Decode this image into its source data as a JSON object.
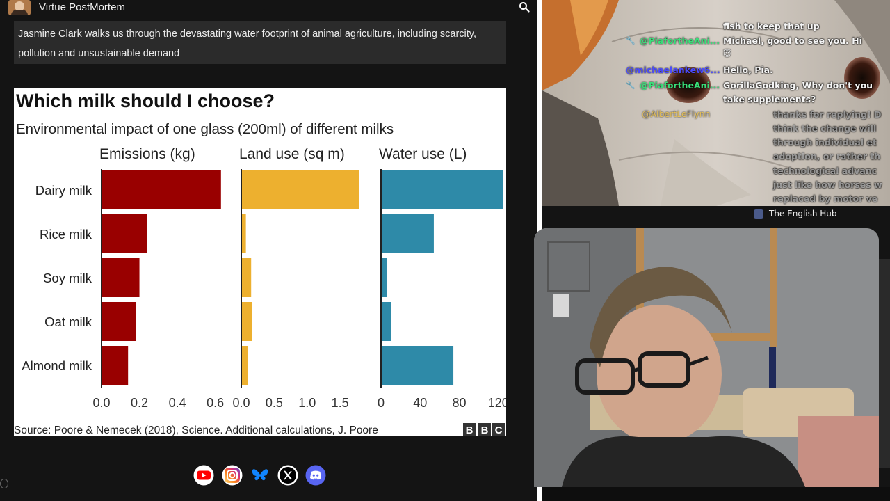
{
  "header": {
    "channel_name": "Virtue PostMortem"
  },
  "description": "Jasmine Clark walks us through the devastating water footprint of animal agriculture, including scarcity, pollution and unsustainable demand",
  "chart_data": {
    "type": "bar",
    "title": "Which milk should I choose?",
    "subtitle": "Environmental impact of one glass (200ml) of different milks",
    "categories": [
      "Dairy milk",
      "Rice milk",
      "Soy milk",
      "Oat milk",
      "Almond milk"
    ],
    "panels": [
      {
        "name": "Emissions (kg)",
        "color": "#990000",
        "values": [
          0.63,
          0.24,
          0.2,
          0.18,
          0.14
        ],
        "xlim": [
          0,
          0.66
        ],
        "ticks": [
          "0.0",
          "0.2",
          "0.4",
          "0.6"
        ],
        "tick_values": [
          0,
          0.2,
          0.4,
          0.6
        ]
      },
      {
        "name": "Land use (sq m)",
        "color": "#EDB02F",
        "values": [
          1.79,
          0.07,
          0.15,
          0.16,
          0.1
        ],
        "xlim": [
          0,
          1.9
        ],
        "ticks": [
          "0.0",
          "0.5",
          "1.0",
          "1.5"
        ],
        "tick_values": [
          0,
          0.5,
          1.0,
          1.5
        ]
      },
      {
        "name": "Water use (L)",
        "color": "#2E8AA8",
        "values": [
          125,
          54,
          6,
          10,
          74
        ],
        "xlim": [
          0,
          128
        ],
        "ticks": [
          "0",
          "40",
          "80",
          "120"
        ],
        "tick_values": [
          0,
          40,
          80,
          120
        ]
      }
    ],
    "source": "Source: Poore & Nemecek (2018), Science. Additional calculations, J. Poore",
    "logo": [
      "B",
      "B",
      "C"
    ]
  },
  "socials": [
    {
      "name": "youtube-icon",
      "color": "#ff0000"
    },
    {
      "name": "instagram-icon",
      "color": "#d6249f"
    },
    {
      "name": "bluesky-icon",
      "color": "#1185fe"
    },
    {
      "name": "x-icon",
      "color": "#000000"
    },
    {
      "name": "discord-icon",
      "color": "#5865f2"
    }
  ],
  "chat": {
    "messages": [
      {
        "text": "fish to keep that up"
      },
      {
        "user": "@PiafortheAni...",
        "user_color": "#39e07a",
        "text": "Michael, good to see you. Hi"
      },
      {
        "emoji": "😇"
      },
      {
        "user": "@michaelankew6...",
        "user_color": "#4b4bff",
        "text": "Hello, Pia."
      },
      {
        "user": "@PiafortheAni...",
        "user_color": "#39e07a",
        "text": "GorillaGodking, Why don't you"
      },
      {
        "text": "take supplements?"
      },
      {
        "user": "@AlbertLeFlynn",
        "user_color": "#e6c15a"
      }
    ],
    "faded_lines": [
      "thanks for replying! D",
      "think the change will",
      "through individual et",
      "adoption, or rather th",
      "technological advanc",
      "just like how horses w",
      "replaced by motor ve"
    ]
  },
  "hub": {
    "name": "The English Hub"
  }
}
